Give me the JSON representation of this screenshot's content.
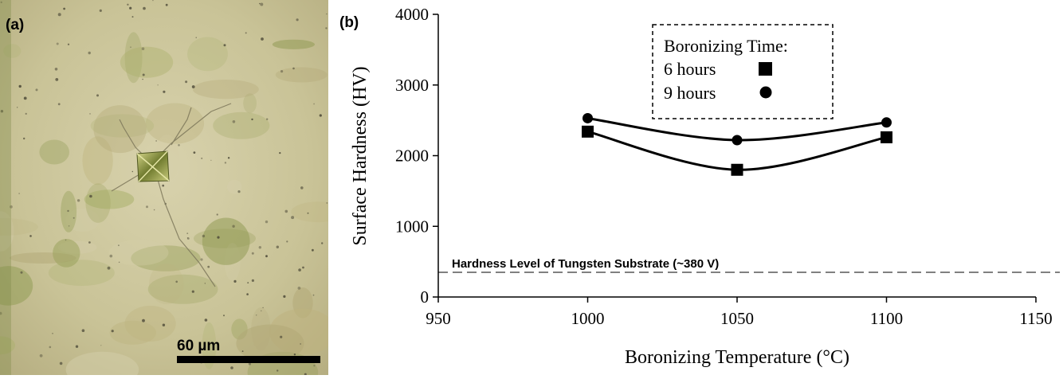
{
  "panels": {
    "a_label": "(a)",
    "b_label": "(b)"
  },
  "micrograph": {
    "scale_bar_label": "60 µm"
  },
  "chart_data": {
    "type": "line",
    "title": "",
    "xlabel": "Boronizing Temperature (°C)",
    "ylabel": "Surface Hardness (HV)",
    "xlim": [
      950,
      1150
    ],
    "ylim": [
      0,
      4000
    ],
    "x_ticks": [
      950,
      1000,
      1050,
      1100,
      1150
    ],
    "y_ticks": [
      0,
      1000,
      2000,
      3000,
      4000
    ],
    "grid": false,
    "legend": {
      "title": "Boronizing Time:",
      "placement": "top-center",
      "entries": [
        "6 hours",
        "9 hours"
      ]
    },
    "series": [
      {
        "name": "6 hours",
        "marker": "square",
        "x": [
          1000,
          1050,
          1100
        ],
        "y": [
          2340,
          1800,
          2260
        ]
      },
      {
        "name": "9 hours",
        "marker": "circle",
        "x": [
          1000,
          1050,
          1100
        ],
        "y": [
          2530,
          2220,
          2470
        ]
      }
    ],
    "reference_line": {
      "label": "Hardness Level of Tungsten Substrate (~380 V)",
      "y": 350,
      "style": "dashed"
    },
    "colors": {
      "line": "#000000",
      "micrograph_base": "#c7c093"
    }
  }
}
